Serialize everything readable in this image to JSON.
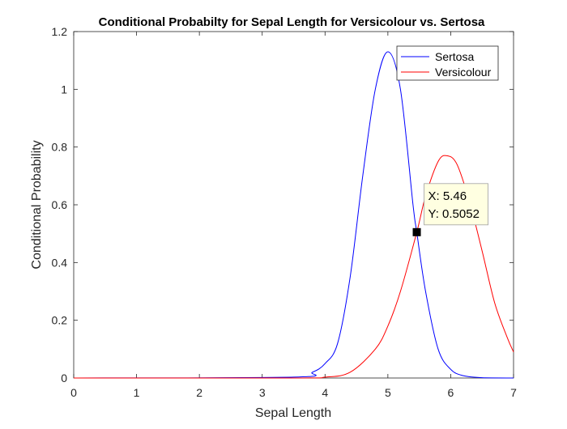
{
  "chart_data": {
    "type": "line",
    "title": "Conditional Probabilty for Sepal Length for Versicolour vs. Sertosa",
    "xlabel": "Sepal Length",
    "ylabel": "Conditional Probability",
    "xlim": [
      0,
      7
    ],
    "ylim": [
      0,
      1.2
    ],
    "x_ticks": [
      "0",
      "1",
      "2",
      "3",
      "4",
      "5",
      "6",
      "7"
    ],
    "y_ticks": [
      "0",
      "0.2",
      "0.4",
      "0.6",
      "0.8",
      "1",
      "1.2"
    ],
    "grid": false,
    "legend_position": "top-right",
    "series": [
      {
        "name": "Sertosa",
        "color": "#0000ff",
        "x": [
          0,
          3.5,
          3.8,
          4.0,
          4.2,
          4.4,
          4.6,
          4.8,
          5.0,
          5.2,
          5.4,
          5.46,
          5.6,
          5.8,
          6.0,
          6.2,
          6.5,
          7.0
        ],
        "y": [
          0,
          0.003,
          0.02,
          0.05,
          0.12,
          0.35,
          0.7,
          1.0,
          1.13,
          1.0,
          0.6,
          0.505,
          0.3,
          0.1,
          0.03,
          0.008,
          0.001,
          0
        ]
      },
      {
        "name": "Versicolour",
        "color": "#ff0000",
        "x": [
          0,
          3.5,
          4.0,
          4.4,
          4.8,
          5.0,
          5.2,
          5.46,
          5.6,
          5.8,
          5.94,
          6.1,
          6.3,
          6.5,
          6.7,
          6.9,
          7.0
        ],
        "y": [
          0,
          0.0,
          0.003,
          0.02,
          0.1,
          0.18,
          0.3,
          0.505,
          0.63,
          0.75,
          0.77,
          0.74,
          0.61,
          0.44,
          0.26,
          0.14,
          0.09
        ]
      }
    ],
    "datatip": {
      "x": 5.46,
      "y": 0.5052,
      "label_x": "X: 5.46",
      "label_y": "Y: 0.5052"
    }
  }
}
